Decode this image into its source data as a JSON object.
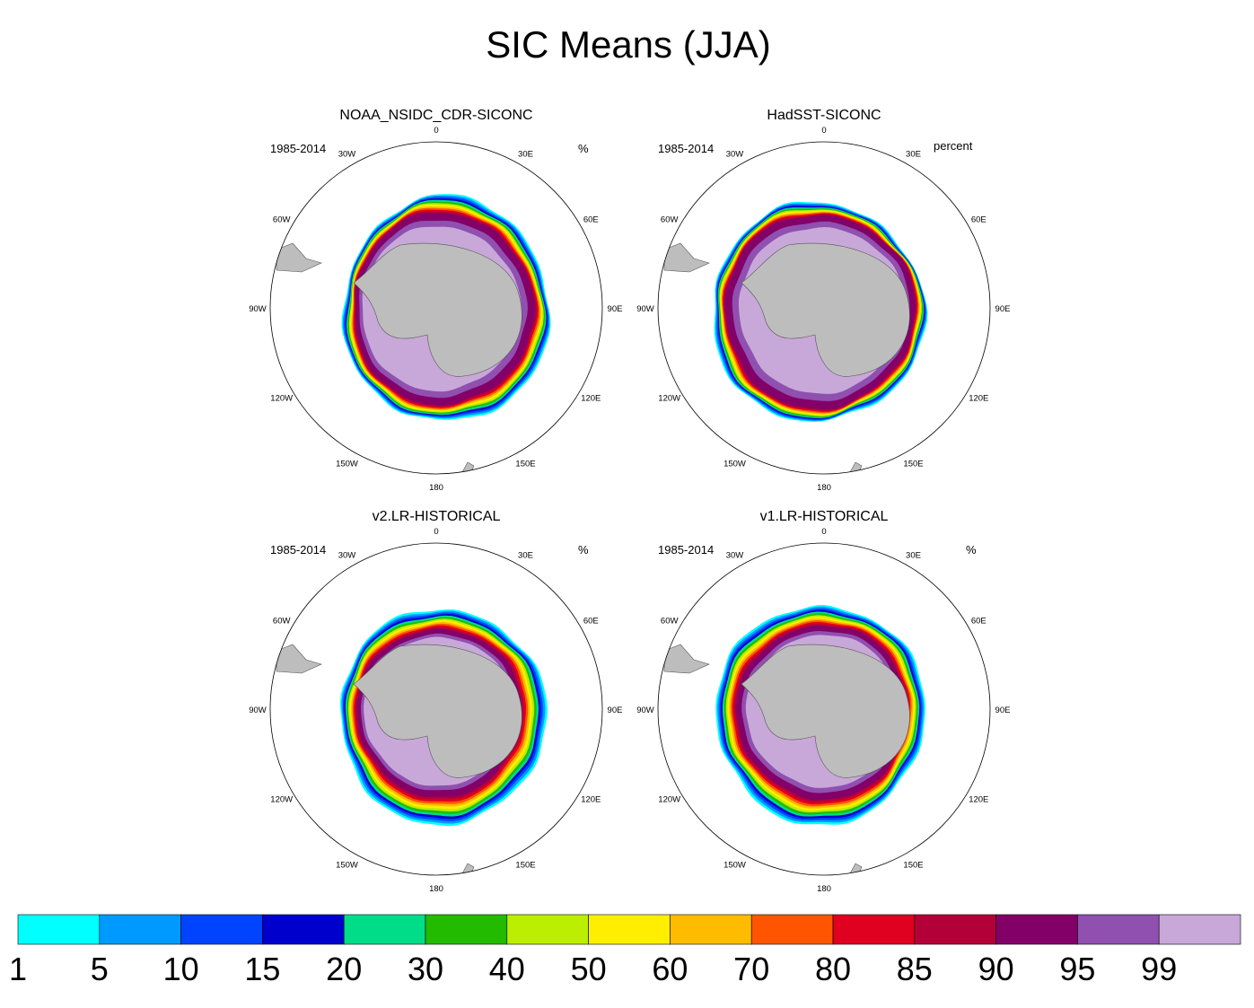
{
  "title": "SIC Means (JJA)",
  "panels": [
    {
      "title": "NOAA_NSIDC_CDR-SICONC",
      "period": "1985-2014",
      "units": "%"
    },
    {
      "title": "HadSST-SICONC",
      "period": "1985-2014",
      "units": "percent"
    },
    {
      "title": "v2.LR-HISTORICAL",
      "period": "1985-2014",
      "units": "%"
    },
    {
      "title": "v1.LR-HISTORICAL",
      "period": "1985-2014",
      "units": "%"
    }
  ],
  "lon_labels": [
    "0",
    "30E",
    "60E",
    "90E",
    "120E",
    "150E",
    "180",
    "150W",
    "120W",
    "90W",
    "60W",
    "30W"
  ],
  "colorbar": {
    "labels": [
      "1",
      "5",
      "10",
      "15",
      "20",
      "30",
      "40",
      "50",
      "60",
      "70",
      "80",
      "85",
      "90",
      "95",
      "99"
    ],
    "colors": [
      "#00ffff",
      "#0099ff",
      "#0044ff",
      "#0000cc",
      "#00dd88",
      "#22bb00",
      "#bbee00",
      "#ffee00",
      "#ffbb00",
      "#ff5500",
      "#e00020",
      "#b40038",
      "#820068",
      "#9050b0",
      "#c8a8d8"
    ]
  },
  "chart_data": {
    "type": "heatmap",
    "title": "SIC Means (JJA)",
    "variable": "Sea ice concentration",
    "season": "JJA",
    "period": "1985-2014",
    "projection": "south polar stereographic",
    "panels": [
      "NOAA_NSIDC_CDR-SICONC",
      "HadSST-SICONC",
      "v2.LR-HISTORICAL",
      "v1.LR-HISTORICAL"
    ],
    "levels": [
      1,
      5,
      10,
      15,
      20,
      30,
      40,
      50,
      60,
      70,
      80,
      85,
      90,
      95,
      99
    ]
  }
}
